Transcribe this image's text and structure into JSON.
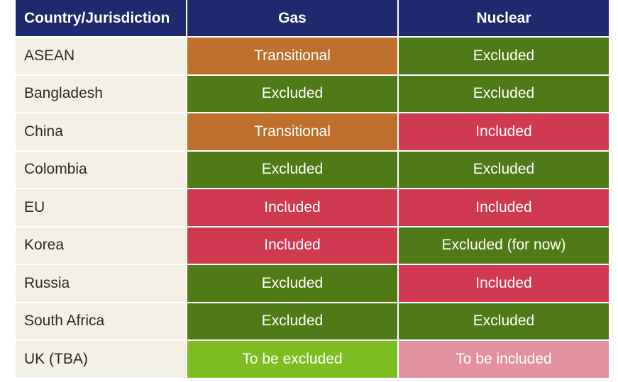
{
  "headers": {
    "country": "Country/Jurisdiction",
    "gas": "Gas",
    "nuclear": "Nuclear"
  },
  "colors": {
    "header": "#1f2a6e",
    "Excluded": "#4e7a17",
    "Excluded (for now)": "#4e7a17",
    "Included": "#cf3a50",
    "Transitional": "#bd6f2b",
    "To be excluded": "#7cbd22",
    "To be included": "#e3919e",
    "country_bg": "#f3f0e6"
  },
  "rows": [
    {
      "country": "ASEAN",
      "gas": "Transitional",
      "nuclear": "Excluded"
    },
    {
      "country": "Bangladesh",
      "gas": "Excluded",
      "nuclear": "Excluded"
    },
    {
      "country": "China",
      "gas": "Transitional",
      "nuclear": "Included"
    },
    {
      "country": "Colombia",
      "gas": "Excluded",
      "nuclear": "Excluded"
    },
    {
      "country": "EU",
      "gas": "Included",
      "nuclear": "Included"
    },
    {
      "country": "Korea",
      "gas": "Included",
      "nuclear": "Excluded (for now)"
    },
    {
      "country": "Russia",
      "gas": "Excluded",
      "nuclear": "Included"
    },
    {
      "country": "South Africa",
      "gas": "Excluded",
      "nuclear": "Excluded"
    },
    {
      "country": "UK (TBA)",
      "gas": "To be excluded",
      "nuclear": "To be included"
    }
  ]
}
